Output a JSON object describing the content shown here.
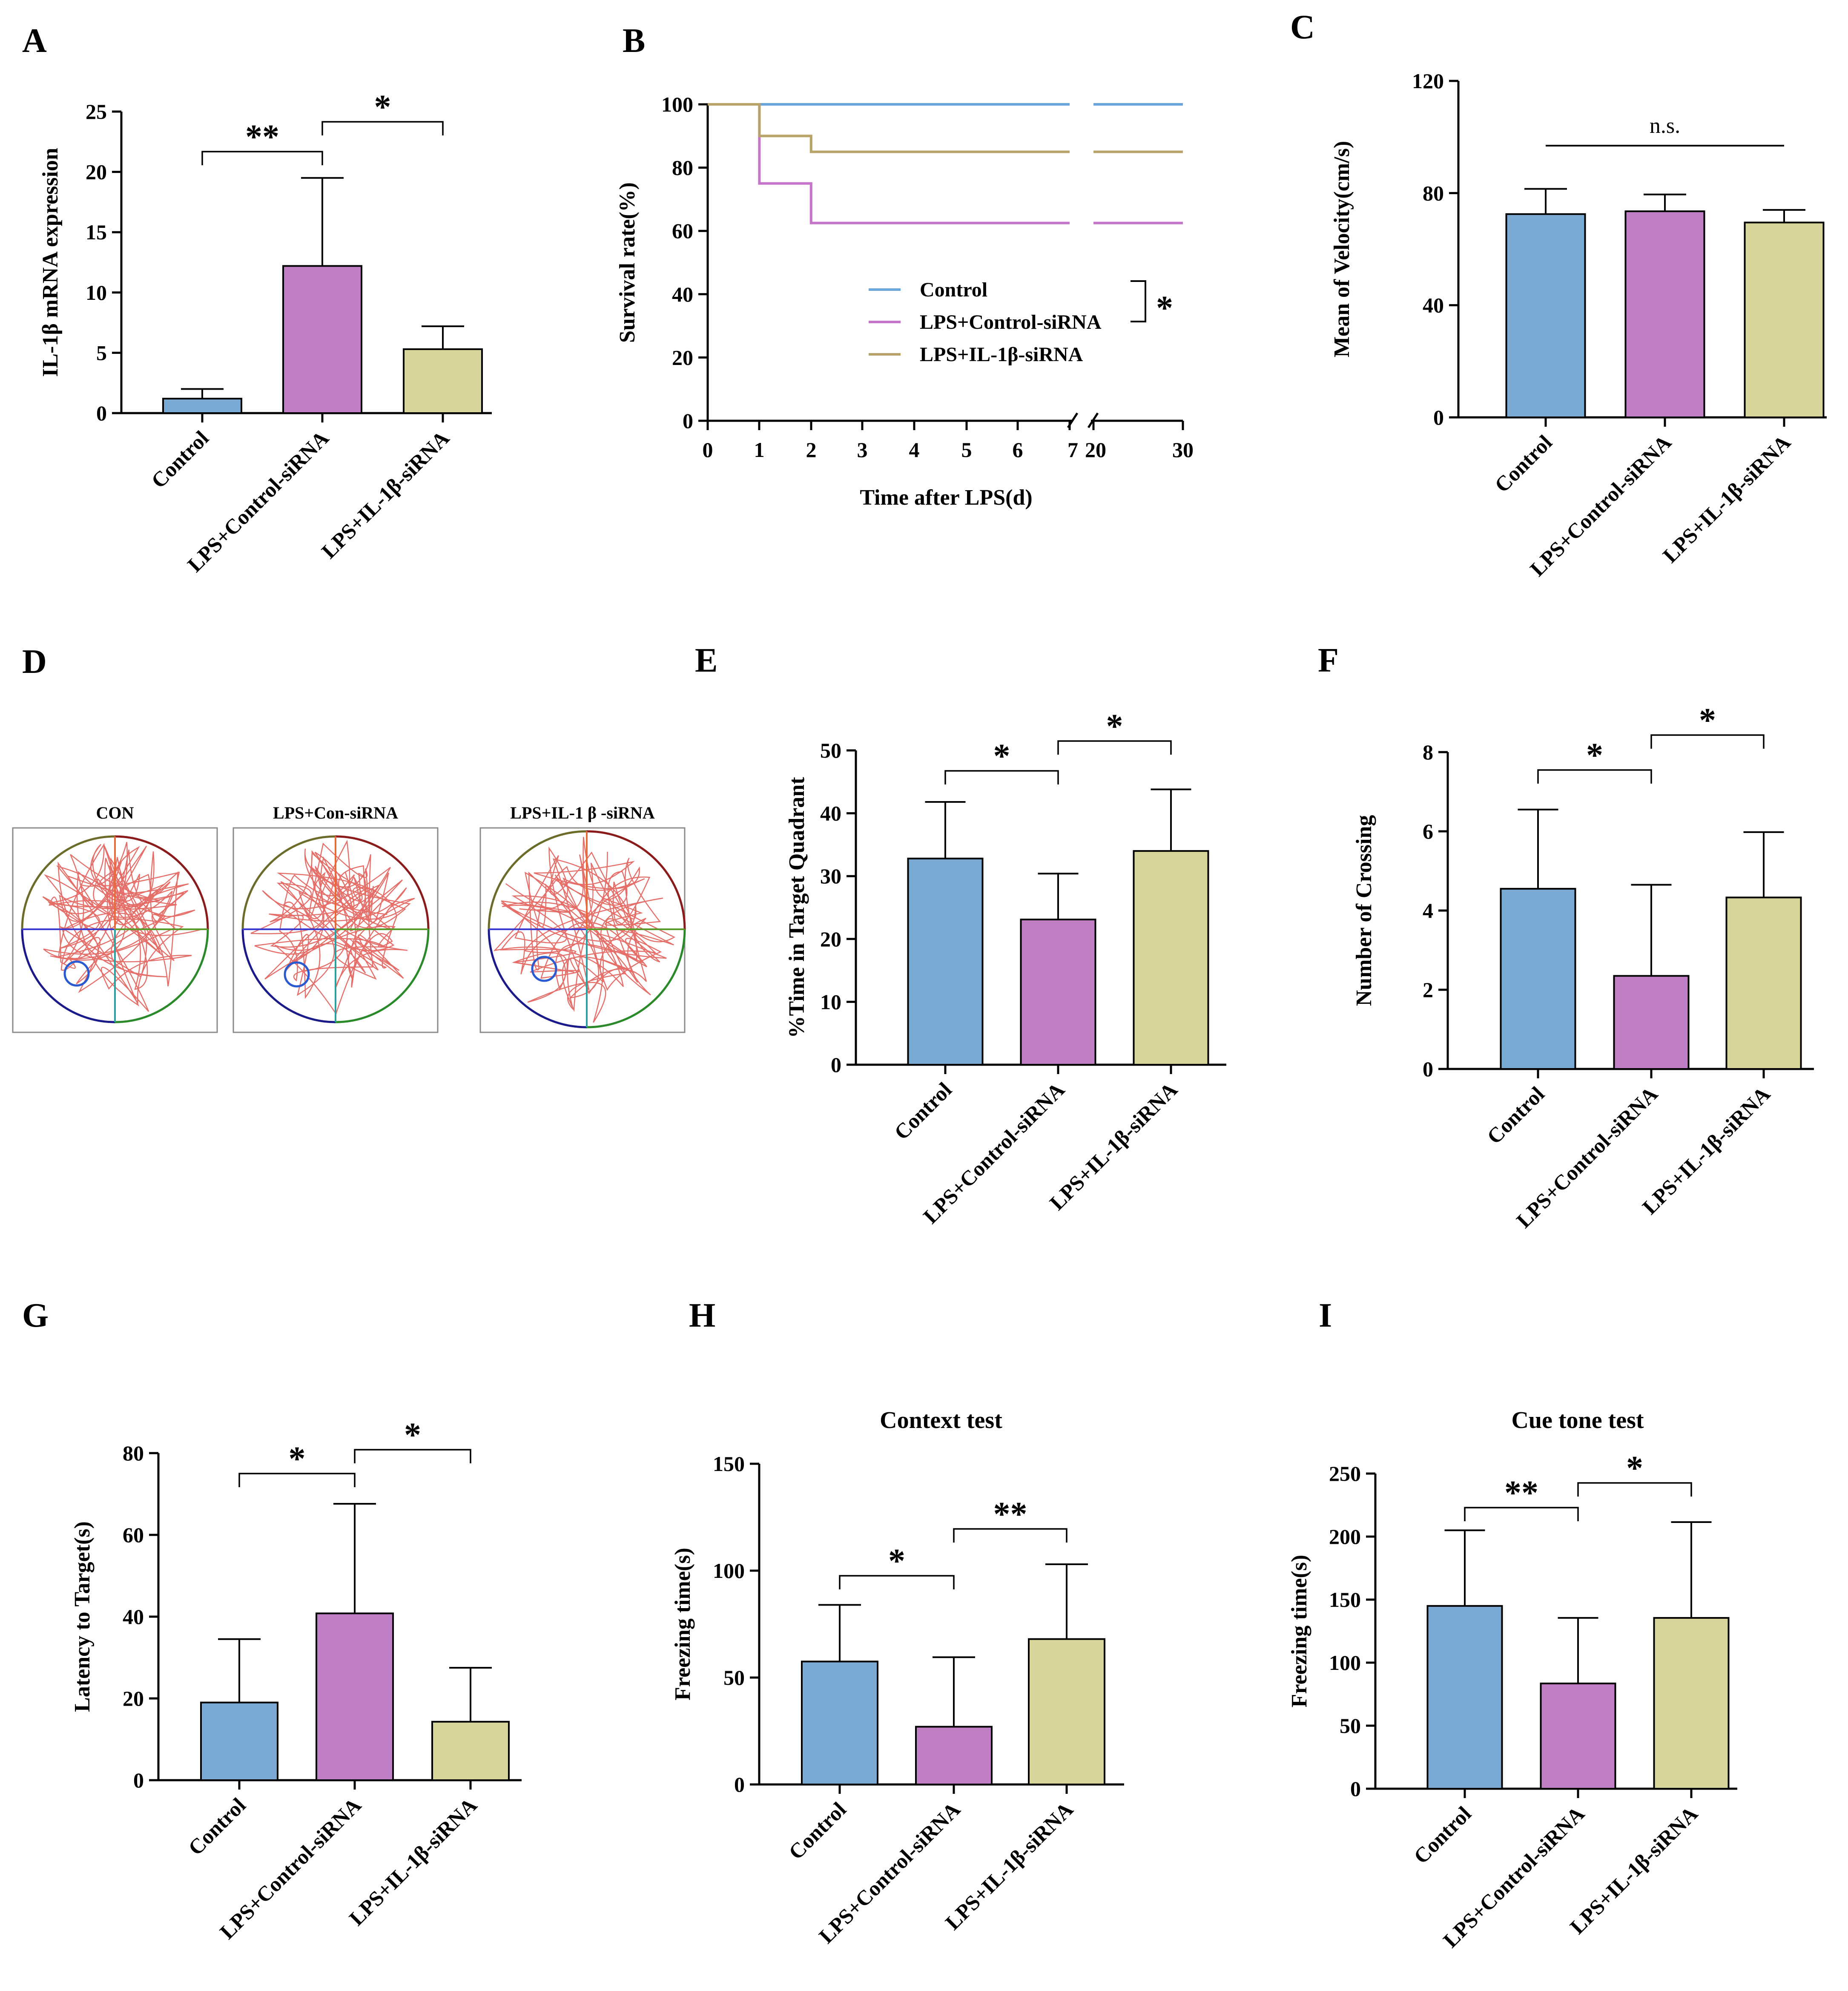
{
  "colors": {
    "control": "#7aaad4",
    "lps_control_sirna": "#c07fc4",
    "lps_il1b_sirna": "#d7d59a",
    "survival_control": "#6aa6dc",
    "survival_lps_control": "#c576c9",
    "survival_lps_il1b": "#b8a36a"
  },
  "categories": [
    "Control",
    "LPS+Control-siRNA",
    "LPS+IL-1β-siRNA"
  ],
  "panel_labels": [
    "A",
    "B",
    "C",
    "D",
    "E",
    "F",
    "G",
    "H",
    "I"
  ],
  "chart_data": [
    {
      "panel": "A",
      "type": "bar",
      "categories": [
        "Control",
        "LPS+Control-siRNA",
        "LPS+IL-1β-siRNA"
      ],
      "values": [
        1.2,
        12.2,
        5.3
      ],
      "errors": [
        0.8,
        7.3,
        1.9
      ],
      "ylabel": "IL-1β mRNA expression",
      "ylim": [
        0,
        25
      ],
      "yticks": [
        "0",
        "5",
        "10",
        "15",
        "20",
        "25"
      ],
      "significance": [
        {
          "pair": [
            0,
            1
          ],
          "label": "**"
        },
        {
          "pair": [
            1,
            2
          ],
          "label": "*"
        }
      ]
    },
    {
      "panel": "B",
      "type": "line",
      "title": "",
      "xlabel": "Time after LPS(d)",
      "ylabel": "Survival rate(%)",
      "ylim": [
        0,
        100
      ],
      "yticks": [
        "0",
        "20",
        "40",
        "60",
        "80",
        "100"
      ],
      "xticks": [
        "0",
        "1",
        "2",
        "3",
        "4",
        "5",
        "6",
        "7",
        "20",
        "30"
      ],
      "series": [
        {
          "name": "Control",
          "steps": [
            [
              0,
              100
            ],
            [
              30,
              100
            ]
          ]
        },
        {
          "name": "LPS+Control-siRNA",
          "steps": [
            [
              0,
              100
            ],
            [
              1,
              75
            ],
            [
              2,
              62.5
            ],
            [
              30,
              62.5
            ]
          ]
        },
        {
          "name": "LPS+IL-1β-siRNA",
          "steps": [
            [
              0,
              100
            ],
            [
              1,
              90
            ],
            [
              2,
              85
            ],
            [
              30,
              85
            ]
          ]
        }
      ],
      "significance_label": "*"
    },
    {
      "panel": "C",
      "type": "bar",
      "categories": [
        "Control",
        "LPS+Control-siRNA",
        "LPS+IL-1β-siRNA"
      ],
      "values": [
        72.5,
        73.5,
        69.5
      ],
      "errors": [
        9,
        6,
        4.5
      ],
      "ylabel": "Mean of Velocity(cm/s)",
      "ylim": [
        0,
        120
      ],
      "yticks": [
        "0",
        "40",
        "80",
        "120"
      ],
      "ns_label": "n.s."
    },
    {
      "panel": "E",
      "type": "bar",
      "categories": [
        "Control",
        "LPS+Control-siRNA",
        "LPS+IL-1β-siRNA"
      ],
      "values": [
        32.8,
        23.1,
        34
      ],
      "errors": [
        9,
        7.3,
        9.8
      ],
      "ylabel": "%Time in Target Quadrant",
      "ylim": [
        0,
        50
      ],
      "yticks": [
        "0",
        "10",
        "20",
        "30",
        "40",
        "50"
      ],
      "significance": [
        {
          "pair": [
            0,
            1
          ],
          "label": "*"
        },
        {
          "pair": [
            1,
            2
          ],
          "label": "*"
        }
      ]
    },
    {
      "panel": "F",
      "type": "bar",
      "categories": [
        "Control",
        "LPS+Control-siRNA",
        "LPS+IL-1β-siRNA"
      ],
      "values": [
        4.55,
        2.35,
        4.33
      ],
      "errors": [
        2,
        2.3,
        1.65
      ],
      "ylabel": "Number of Crossing",
      "ylim": [
        0,
        8
      ],
      "yticks": [
        "0",
        "2",
        "4",
        "6",
        "8"
      ],
      "significance": [
        {
          "pair": [
            0,
            1
          ],
          "label": "*"
        },
        {
          "pair": [
            1,
            2
          ],
          "label": "*"
        }
      ]
    },
    {
      "panel": "G",
      "type": "bar",
      "categories": [
        "Control",
        "LPS+Control-siRNA",
        "LPS+IL-1β-siRNA"
      ],
      "values": [
        19,
        40.8,
        14.3
      ],
      "errors": [
        15.5,
        26.8,
        13.2
      ],
      "ylabel": "Latency to Target(s)",
      "ylim": [
        0,
        80
      ],
      "yticks": [
        "0",
        "20",
        "40",
        "60",
        "80"
      ],
      "significance": [
        {
          "pair": [
            0,
            1
          ],
          "label": "*"
        },
        {
          "pair": [
            1,
            2
          ],
          "label": "*"
        }
      ]
    },
    {
      "panel": "H",
      "type": "bar",
      "title": "Context test",
      "categories": [
        "Control",
        "LPS+Control-siRNA",
        "LPS+IL-1β-siRNA"
      ],
      "values": [
        57.5,
        27,
        68
      ],
      "errors": [
        26.5,
        32.5,
        35
      ],
      "ylabel": "Freezing time(s)",
      "ylim": [
        0,
        150
      ],
      "yticks": [
        "0",
        "50",
        "100",
        "150"
      ],
      "significance": [
        {
          "pair": [
            0,
            1
          ],
          "label": "*"
        },
        {
          "pair": [
            1,
            2
          ],
          "label": "**"
        }
      ]
    },
    {
      "panel": "I",
      "type": "bar",
      "title": "Cue tone test",
      "categories": [
        "Control",
        "LPS+Control-siRNA",
        "LPS+IL-1β-siRNA"
      ],
      "values": [
        145,
        83.5,
        135.5
      ],
      "errors": [
        60,
        52,
        76
      ],
      "ylabel": "Freezing time(s)",
      "ylim": [
        0,
        250
      ],
      "yticks": [
        "0",
        "50",
        "100",
        "150",
        "200",
        "250"
      ],
      "significance": [
        {
          "pair": [
            0,
            1
          ],
          "label": "**"
        },
        {
          "pair": [
            1,
            2
          ],
          "label": "*"
        }
      ]
    }
  ],
  "maze": {
    "panel": "D",
    "labels": [
      "CON",
      "LPS+Con-siRNA",
      "LPS+IL-1 β -siRNA"
    ]
  }
}
